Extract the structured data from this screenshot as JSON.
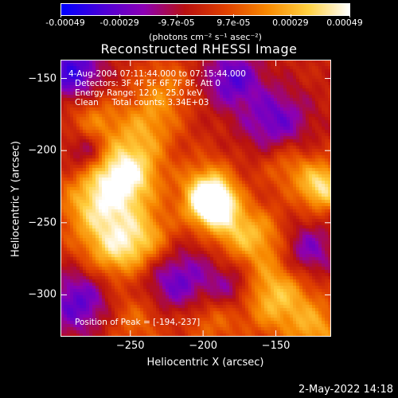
{
  "colorbar": {
    "tick_labels": [
      "-0.00049",
      "-0.00029",
      "-9.7e-05",
      "9.7e-05",
      "0.00029",
      "0.00049"
    ],
    "tick_values": [
      -0.00049,
      -0.00029,
      -9.7e-05,
      9.7e-05,
      0.00029,
      0.00049
    ],
    "range": [
      -0.00049,
      0.00049
    ],
    "units": "(photons cm⁻² s⁻¹ asec⁻²)",
    "colors": [
      "#0000ff",
      "#4a00d8",
      "#8c00b4",
      "#b81010",
      "#e04000",
      "#f88800",
      "#ffd040",
      "#ffffff"
    ]
  },
  "chart_data": {
    "type": "heatmap",
    "title": "Reconstructed RHESSI Image",
    "xlabel": "Heliocentric X (arcsec)",
    "ylabel": "Heliocentric Y (arcsec)",
    "xlim": [
      -298,
      -112
    ],
    "ylim": [
      -329,
      -137
    ],
    "x_ticks": [
      -250,
      -200,
      -150
    ],
    "y_ticks": [
      -150,
      -200,
      -250,
      -300
    ],
    "annotations": [
      "4-Aug-2004 07:11:44.000 to 07:15:44.000",
      "Detectors: 3F 4F 5F 6F 7F 8F, Att 0",
      "Energy Range: 12.0 - 25.0 keV",
      "Clean     Total counts: 3.34E+03"
    ],
    "peak_label": "Position of Peak = [-194,-237]",
    "peak_position": [
      -194,
      -237
    ],
    "sources": [
      {
        "x": -194,
        "y": -237,
        "sigma": 11,
        "amp": 1.0
      },
      {
        "x": -197,
        "y": -225,
        "sigma": 14,
        "amp": 0.45
      },
      {
        "x": -253,
        "y": -215,
        "sigma": 16,
        "amp": 0.78
      },
      {
        "x": -272,
        "y": -238,
        "sigma": 18,
        "amp": 0.62
      },
      {
        "x": -240,
        "y": -262,
        "sigma": 16,
        "amp": 0.5
      },
      {
        "x": -262,
        "y": -270,
        "sigma": 15,
        "amp": 0.45
      },
      {
        "x": -238,
        "y": -182,
        "sigma": 15,
        "amp": 0.38
      },
      {
        "x": -275,
        "y": -180,
        "sigma": 13,
        "amp": 0.35
      },
      {
        "x": -226,
        "y": -155,
        "sigma": 14,
        "amp": 0.3
      },
      {
        "x": -178,
        "y": -255,
        "sigma": 13,
        "amp": 0.4
      },
      {
        "x": -158,
        "y": -262,
        "sigma": 15,
        "amp": 0.35
      },
      {
        "x": -118,
        "y": -225,
        "sigma": 12,
        "amp": 0.72
      },
      {
        "x": -143,
        "y": -210,
        "sigma": 12,
        "amp": 0.3
      },
      {
        "x": -150,
        "y": -300,
        "sigma": 18,
        "amp": 0.6
      },
      {
        "x": -122,
        "y": -325,
        "sigma": 14,
        "amp": 0.42
      },
      {
        "x": -195,
        "y": -318,
        "sigma": 14,
        "amp": 0.3
      },
      {
        "x": -245,
        "y": -315,
        "sigma": 16,
        "amp": 0.32
      },
      {
        "x": -180,
        "y": -150,
        "sigma": 14,
        "amp": -0.5
      },
      {
        "x": -150,
        "y": -180,
        "sigma": 16,
        "amp": -0.45
      },
      {
        "x": -290,
        "y": -145,
        "sigma": 14,
        "amp": -0.6
      },
      {
        "x": -220,
        "y": -290,
        "sigma": 18,
        "amp": -0.5
      },
      {
        "x": -285,
        "y": -305,
        "sigma": 16,
        "amp": -0.5
      },
      {
        "x": -280,
        "y": -200,
        "sigma": 10,
        "amp": -0.4
      },
      {
        "x": -130,
        "y": -270,
        "sigma": 14,
        "amp": -0.45
      },
      {
        "x": -180,
        "y": -295,
        "sigma": 12,
        "amp": -0.35
      }
    ]
  },
  "datestamp": "2-May-2022 14:18"
}
